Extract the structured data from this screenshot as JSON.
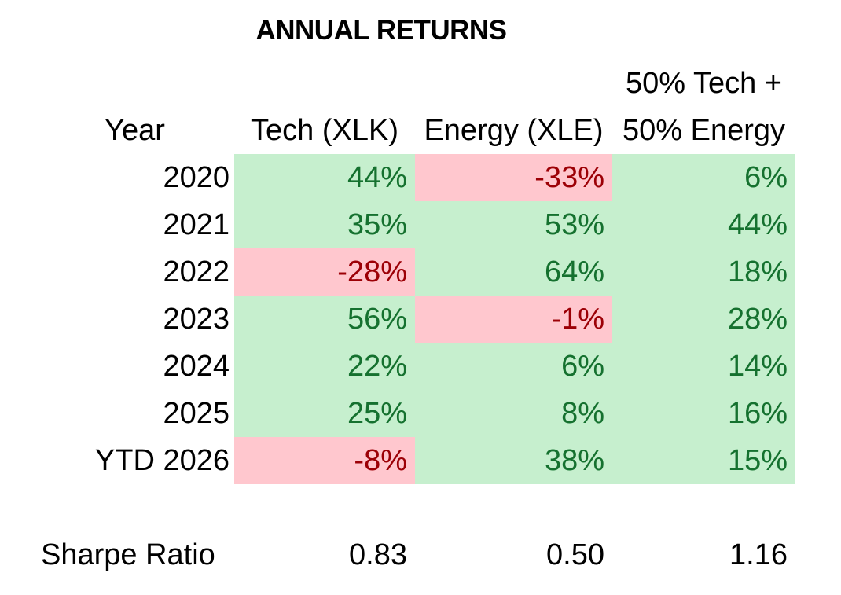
{
  "title": "ANNUAL RETURNS",
  "table": {
    "col_headers": {
      "year": "Year",
      "tech": "Tech (XLK)",
      "energy": "Energy (XLE)",
      "blend_line1": "50% Tech +",
      "blend_line2": "50% Energy"
    },
    "rows": [
      {
        "year": "2020",
        "tech": "44%",
        "energy": "-33%",
        "blend": "6%"
      },
      {
        "year": "2021",
        "tech": "35%",
        "energy": "53%",
        "blend": "44%"
      },
      {
        "year": "2022",
        "tech": "-28%",
        "energy": "64%",
        "blend": "18%"
      },
      {
        "year": "2023",
        "tech": "56%",
        "energy": "-1%",
        "blend": "28%"
      },
      {
        "year": "2024",
        "tech": "22%",
        "energy": "6%",
        "blend": "14%"
      },
      {
        "year": "2025",
        "tech": "25%",
        "energy": "8%",
        "blend": "16%"
      },
      {
        "year": "YTD 2026",
        "tech": "-8%",
        "energy": "38%",
        "blend": "15%"
      }
    ],
    "sharpe": {
      "label": "Sharpe Ratio",
      "tech": "0.83",
      "energy": "0.50",
      "blend": "1.16"
    }
  },
  "colors": {
    "canvas_bg": "#ffffff",
    "text": "#000000",
    "pos_bg": "#c6efce",
    "pos_text": "#15712f",
    "neg_bg": "#ffc7ce",
    "neg_text": "#9c0006"
  },
  "chart_data": {
    "type": "table",
    "title": "ANNUAL RETURNS",
    "columns": [
      "Year",
      "Tech (XLK)",
      "Energy (XLE)",
      "50% Tech + 50% Energy"
    ],
    "rows": [
      [
        "2020",
        44,
        -33,
        6
      ],
      [
        "2021",
        35,
        53,
        44
      ],
      [
        "2022",
        -28,
        64,
        18
      ],
      [
        "2023",
        56,
        -1,
        28
      ],
      [
        "2024",
        22,
        6,
        14
      ],
      [
        "2025",
        25,
        8,
        16
      ],
      [
        "YTD 2026",
        -8,
        38,
        15
      ]
    ],
    "values_unit": "percent",
    "summary_row": [
      "Sharpe Ratio",
      0.83,
      0.5,
      1.16
    ],
    "conditional_format": "positive values green fill with dark green text, negative values pink fill with dark red text"
  }
}
